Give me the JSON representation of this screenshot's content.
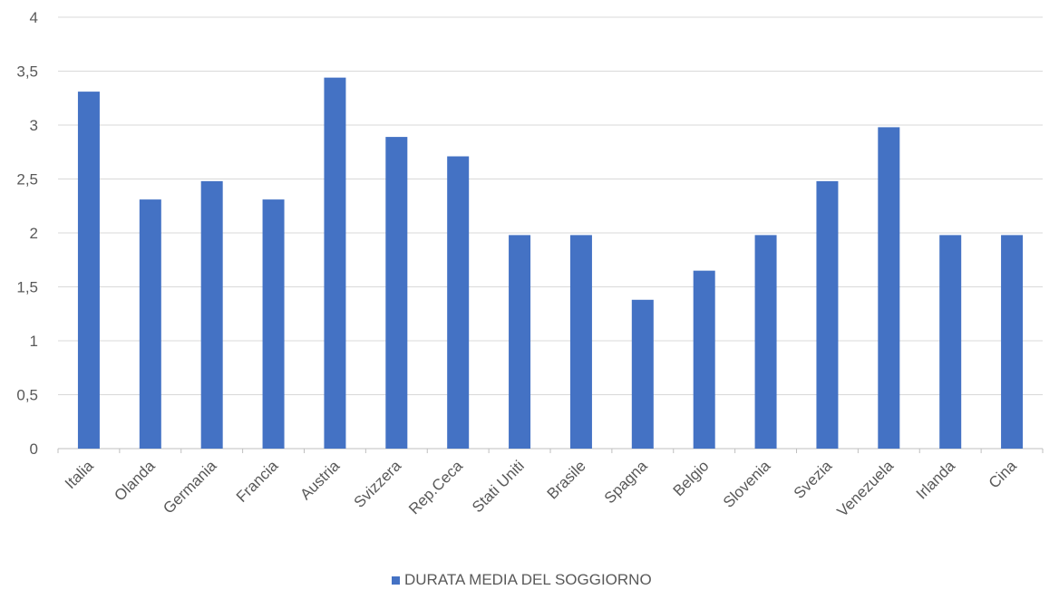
{
  "chart_data": {
    "type": "bar",
    "title": "",
    "xlabel": "",
    "ylabel": "",
    "ylim": [
      0,
      4
    ],
    "y_ticks": [
      "0",
      "0,5",
      "1",
      "1,5",
      "2",
      "2,5",
      "3",
      "3,5",
      "4"
    ],
    "y_tick_values": [
      0,
      0.5,
      1,
      1.5,
      2,
      2.5,
      3,
      3.5,
      4
    ],
    "grid": true,
    "legend_position": "bottom",
    "categories": [
      "Italia",
      "Olanda",
      "Germania",
      "Francia",
      "Austria",
      "Svizzera",
      "Rep.Ceca",
      "Stati Uniti",
      "Brasile",
      "Spagna",
      "Belgio",
      "Slovenia",
      "Svezia",
      "Venezuela",
      "Irlanda",
      "Cina"
    ],
    "series": [
      {
        "name": "DURATA MEDIA DEL SOGGIORNO",
        "color": "#4472c4",
        "values": [
          3.31,
          2.31,
          2.48,
          2.31,
          3.44,
          2.89,
          2.71,
          1.98,
          1.98,
          1.38,
          1.65,
          1.98,
          2.48,
          2.98,
          1.98,
          1.98
        ]
      }
    ]
  }
}
